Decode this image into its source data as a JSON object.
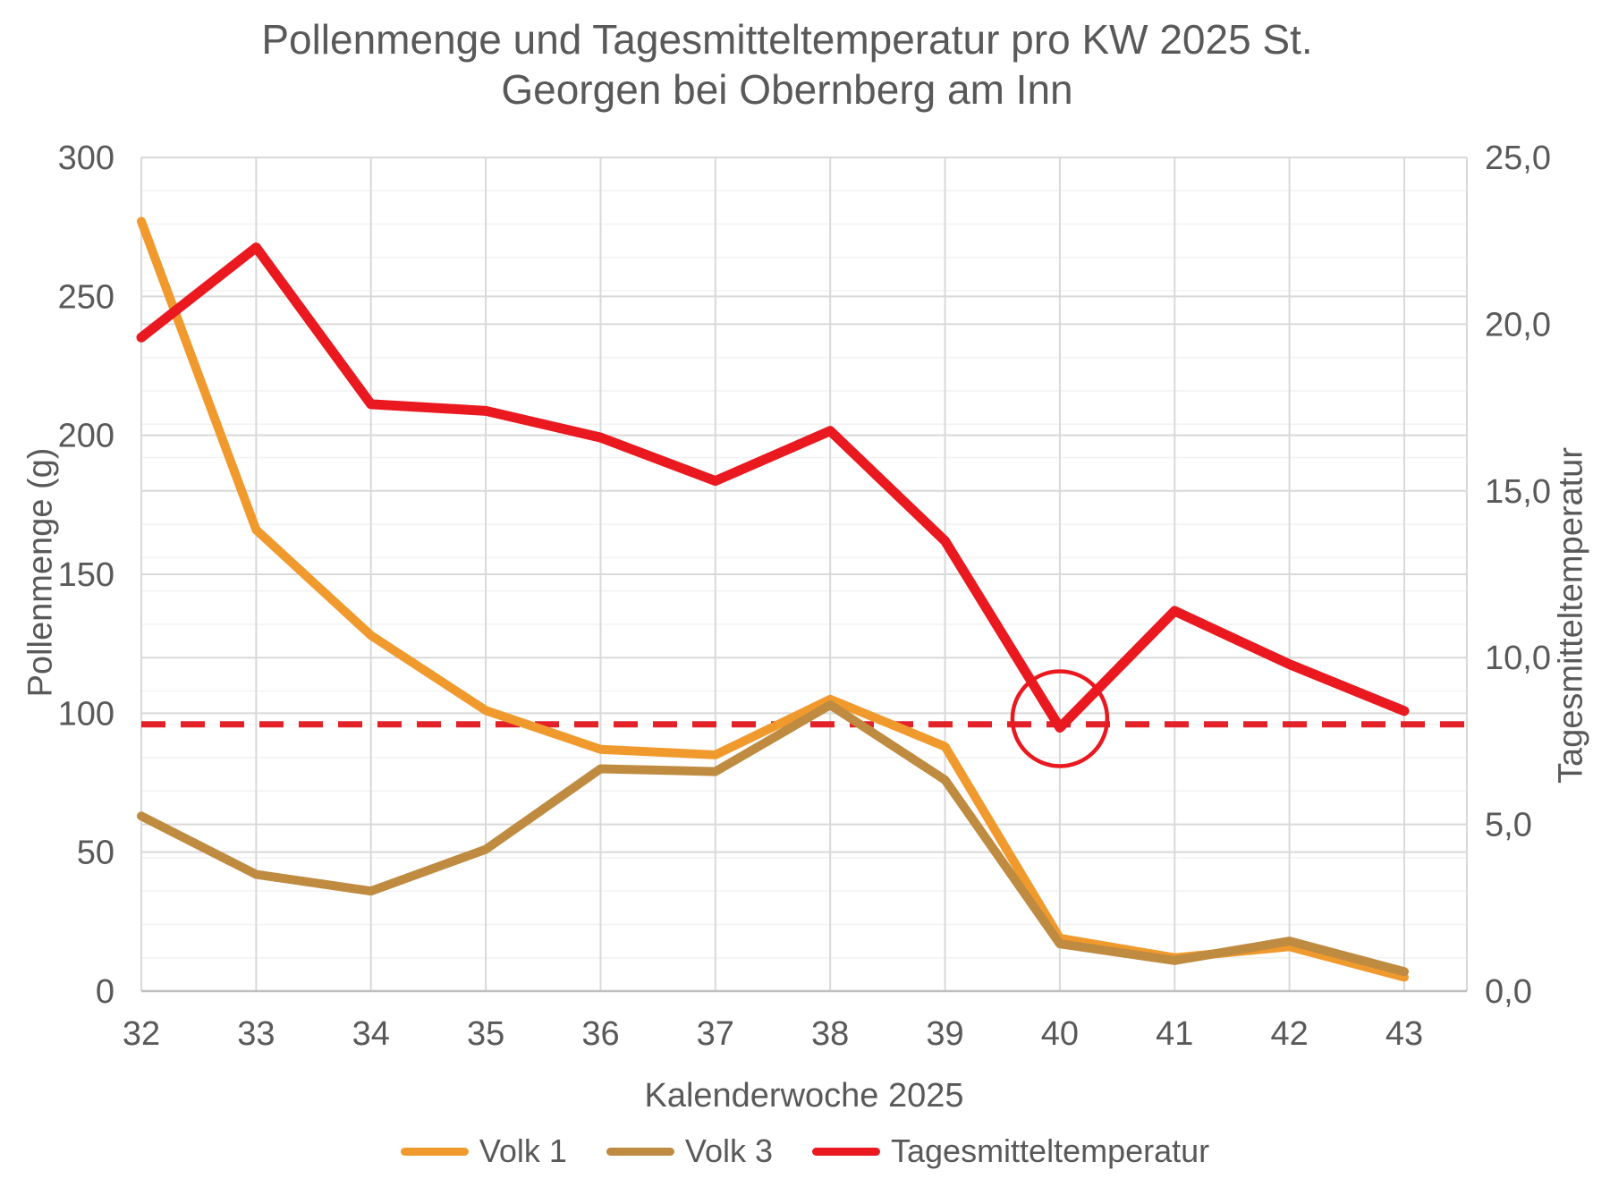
{
  "title": {
    "line1": "Pollenmenge und Tagesmitteltemperatur pro KW 2025 St.",
    "line2": "Georgen bei Obernberg am Inn"
  },
  "text_color": "#595959",
  "chart_data": {
    "type": "line",
    "categories": [
      "32",
      "33",
      "34",
      "35",
      "36",
      "37",
      "38",
      "39",
      "40",
      "41",
      "42",
      "43"
    ],
    "x_axis": {
      "title": "Kalenderwoche 2025"
    },
    "y_left": {
      "title": "Pollenmenge (g)",
      "min": 0,
      "max": 300,
      "step": 50,
      "tick_labels": [
        "300",
        "250",
        "200",
        "150",
        "100",
        "50",
        "0"
      ]
    },
    "y_right": {
      "title": "Tagesmitteltemperatur",
      "min": 0,
      "max": 25,
      "step": 5,
      "tick_labels": [
        "25,0",
        "20,0",
        "15,0",
        "10,0",
        "5,0",
        "0,0"
      ]
    },
    "series": [
      {
        "name": "Volk 1",
        "axis": "left",
        "color": "#F09A2E",
        "width": 10,
        "values": [
          277,
          166,
          128,
          101,
          87,
          85,
          105,
          88,
          19,
          12,
          16,
          5
        ]
      },
      {
        "name": "Volk 3",
        "axis": "left",
        "color": "#BF8B40",
        "width": 10,
        "values": [
          63,
          42,
          36,
          51,
          80,
          79,
          103,
          76,
          17,
          11,
          18,
          7
        ]
      },
      {
        "name": "Tagesmitteltemperatur",
        "axis": "right",
        "color": "#E9191F",
        "width": 11,
        "values": [
          19.6,
          22.3,
          17.6,
          17.4,
          16.6,
          15.3,
          16.8,
          13.5,
          7.9,
          11.4,
          9.8,
          8.4
        ]
      }
    ],
    "threshold_line": {
      "axis": "right",
      "value": 8.0,
      "color": "#E32128",
      "style": "dashed"
    },
    "annotation_circle": {
      "category": "40",
      "series": "Tagesmitteltemperatur",
      "color": "#E9191F"
    },
    "grid": {
      "major_color": "#D9D9D9",
      "minor_color": "#F2F2F2",
      "axis_line_color": "#BFBFBF",
      "minor_step_right_axis": 1
    },
    "legend_position": "bottom"
  },
  "legend": {
    "items": [
      {
        "label": "Volk 1",
        "color": "#F09A2E"
      },
      {
        "label": "Volk 3",
        "color": "#BF8B40"
      },
      {
        "label": "Tagesmitteltemperatur",
        "color": "#E9191F"
      }
    ]
  }
}
